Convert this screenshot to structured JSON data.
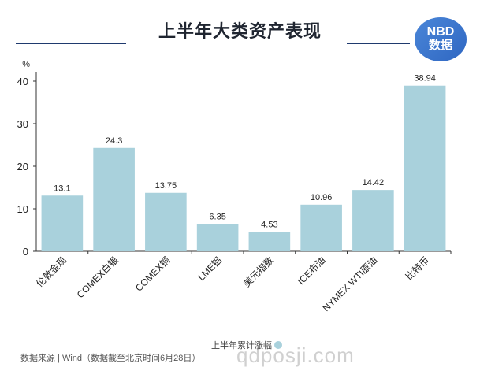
{
  "header": {
    "title": "上半年大类资产表现",
    "logo_line1": "NBD",
    "logo_line2": "数据"
  },
  "chart_data": {
    "type": "bar",
    "title": "上半年大类资产表现",
    "ylabel": "%",
    "ylim": [
      0,
      40
    ],
    "yticks": [
      0,
      10,
      20,
      30,
      40
    ],
    "categories": [
      "伦敦金现",
      "COMEX白银",
      "COMEX铜",
      "LME铝",
      "美元指数",
      "ICE布油",
      "NYMEX WTI原油",
      "比特币"
    ],
    "series": [
      {
        "name": "上半年累计涨幅",
        "values": [
          13.1,
          24.3,
          13.75,
          6.35,
          4.53,
          10.96,
          14.42,
          38.94
        ]
      }
    ],
    "value_labels": [
      "13.1",
      "24.3",
      "13.75",
      "6.35",
      "4.53",
      "10.96",
      "14.42",
      "38.94"
    ],
    "bar_color": "#a9d1dc",
    "grid": false,
    "legend_position": "bottom"
  },
  "footer": {
    "source": "数据来源 | Wind（数据截至北京时间6月28日）",
    "legend_label": "上半年累计涨幅",
    "watermark": "qdposji.com"
  }
}
